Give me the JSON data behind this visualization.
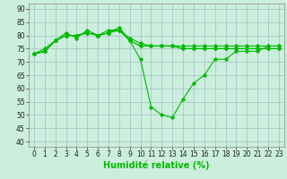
{
  "xlabel": "Humidité relative (%)",
  "background_color": "#cceedd",
  "grid_color": "#aacccc",
  "line_color": "#00bb00",
  "xlim": [
    -0.5,
    23.5
  ],
  "ylim": [
    38,
    92
  ],
  "yticks": [
    40,
    45,
    50,
    55,
    60,
    65,
    70,
    75,
    80,
    85,
    90
  ],
  "xticks": [
    0,
    1,
    2,
    3,
    4,
    5,
    6,
    7,
    8,
    9,
    10,
    11,
    12,
    13,
    14,
    15,
    16,
    17,
    18,
    19,
    20,
    21,
    22,
    23
  ],
  "lines": [
    [
      73,
      75,
      78,
      81,
      79,
      82,
      80,
      81,
      83,
      78,
      71,
      53,
      50,
      49,
      56,
      62,
      65,
      71,
      71,
      74,
      74,
      74,
      76,
      76
    ],
    [
      73,
      74,
      78,
      80,
      80,
      81,
      80,
      82,
      82,
      79,
      77,
      76,
      76,
      76,
      76,
      76,
      76,
      76,
      76,
      76,
      76,
      76,
      76,
      76
    ],
    [
      73,
      74,
      78,
      80,
      80,
      81,
      80,
      81,
      82,
      78,
      76,
      76,
      76,
      76,
      75,
      75,
      75,
      75,
      75,
      75,
      75,
      75,
      75,
      75
    ],
    [
      73,
      74,
      78,
      80,
      80,
      81,
      80,
      81,
      82,
      78,
      76,
      76,
      76,
      76,
      75,
      75,
      75,
      75,
      75,
      75,
      75,
      75,
      75,
      75
    ]
  ],
  "marker": "D",
  "markersize": 1.8,
  "linewidth": 0.8,
  "xlabel_fontsize": 7,
  "tick_fontsize": 5.5
}
